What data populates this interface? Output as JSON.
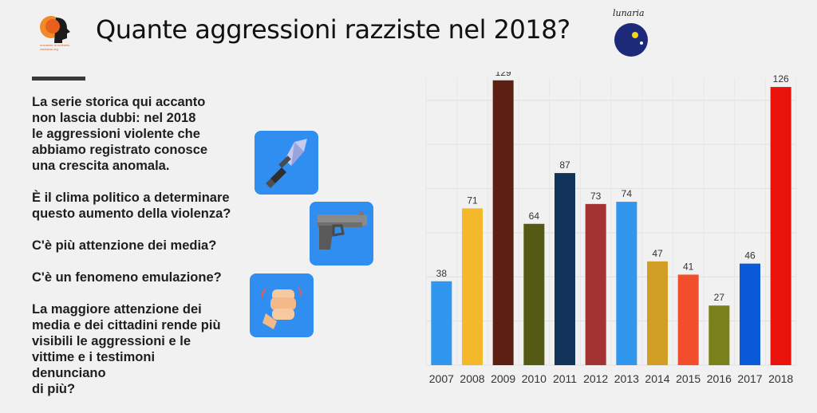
{
  "header": {
    "title": "Quante aggressioni razziste nel 2018?",
    "logo_left_text": "cronache di ordinario razzismo.org",
    "logo_right_text": "lunaria"
  },
  "text": {
    "p1": "La serie storica qui accanto\nnon lascia dubbi: nel 2018\nle aggressioni violente che\nabbiamo registrato conosce\nuna crescita anomala.",
    "p2": "È il clima politico a determinare\nquesto aumento della violenza?",
    "p3": "C'è più attenzione dei media?",
    "p4": "C'è un fenomeno emulazione?",
    "p5": "La maggiore attenzione dei\nmedia e dei cittadini rende più\nvisibili le aggressioni e le\nvittime e i testimoni denunciano\ndi più?"
  },
  "icons": {
    "knife": "knife-icon",
    "pistol": "pistol-icon",
    "fist": "fist-icon",
    "tile_color": "#2f8ef0"
  },
  "chart_data": {
    "type": "bar",
    "categories": [
      "2007",
      "2008",
      "2009",
      "2010",
      "2011",
      "2012",
      "2013",
      "2014",
      "2015",
      "2016",
      "2017",
      "2018"
    ],
    "values": [
      38,
      71,
      129,
      64,
      87,
      73,
      74,
      47,
      41,
      27,
      46,
      126
    ],
    "colors": [
      "#3096ee",
      "#f5b82a",
      "#5c2012",
      "#545a13",
      "#12345a",
      "#a33232",
      "#3096ee",
      "#d09d25",
      "#f24e2c",
      "#7a801a",
      "#0a5ad8",
      "#e8130b"
    ],
    "ylim": [
      0,
      130
    ],
    "grid": true,
    "title": "",
    "xlabel": "",
    "ylabel": ""
  }
}
